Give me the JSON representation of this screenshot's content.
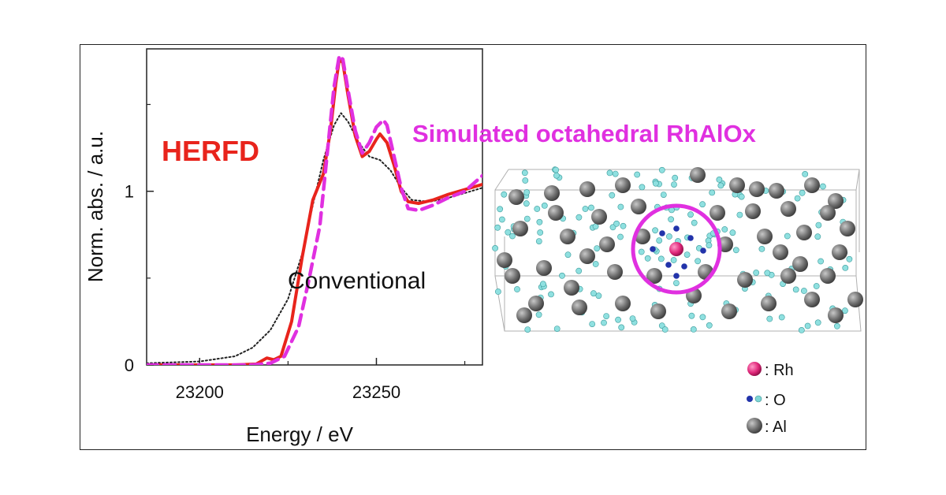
{
  "chart_data": {
    "type": "line",
    "xlabel": "Energy  / eV",
    "ylabel": "Norm. abs. / a.u.",
    "xlim": [
      23185,
      23280
    ],
    "ylim": [
      0,
      1.82
    ],
    "xticks": [
      23200,
      23250
    ],
    "yticks": [
      0,
      1
    ],
    "grid": false,
    "series": [
      {
        "name": "HERFD",
        "style": "solid",
        "color": "#e8241c",
        "points": [
          [
            23185,
            0
          ],
          [
            23210,
            0.0
          ],
          [
            23216,
            0.005
          ],
          [
            23219,
            0.04
          ],
          [
            23221,
            0.03
          ],
          [
            23223,
            0.05
          ],
          [
            23226,
            0.25
          ],
          [
            23229,
            0.62
          ],
          [
            23232,
            0.95
          ],
          [
            23235,
            1.1
          ],
          [
            23237,
            1.35
          ],
          [
            23238.5,
            1.62
          ],
          [
            23239.5,
            1.76
          ],
          [
            23240.5,
            1.74
          ],
          [
            23242,
            1.55
          ],
          [
            23244,
            1.32
          ],
          [
            23246,
            1.2
          ],
          [
            23248,
            1.23
          ],
          [
            23250,
            1.3
          ],
          [
            23251,
            1.33
          ],
          [
            23253,
            1.28
          ],
          [
            23255,
            1.15
          ],
          [
            23257,
            1.0
          ],
          [
            23259,
            0.94
          ],
          [
            23262,
            0.93
          ],
          [
            23266,
            0.95
          ],
          [
            23270,
            0.98
          ],
          [
            23275,
            1.01
          ],
          [
            23280,
            1.04
          ]
        ]
      },
      {
        "name": "Simulated octahedral RhAlOx",
        "style": "dashed",
        "color": "#e030e0",
        "points": [
          [
            23185,
            0
          ],
          [
            23215,
            0.0
          ],
          [
            23220,
            0.01
          ],
          [
            23224,
            0.05
          ],
          [
            23228,
            0.22
          ],
          [
            23231,
            0.5
          ],
          [
            23234,
            0.8
          ],
          [
            23236,
            1.2
          ],
          [
            23238,
            1.6
          ],
          [
            23239.5,
            1.78
          ],
          [
            23240.5,
            1.76
          ],
          [
            23242,
            1.58
          ],
          [
            23244,
            1.35
          ],
          [
            23246,
            1.22
          ],
          [
            23248,
            1.28
          ],
          [
            23250,
            1.37
          ],
          [
            23252,
            1.41
          ],
          [
            23253,
            1.38
          ],
          [
            23255,
            1.2
          ],
          [
            23257,
            1.02
          ],
          [
            23259,
            0.9
          ],
          [
            23262,
            0.89
          ],
          [
            23266,
            0.92
          ],
          [
            23270,
            0.96
          ],
          [
            23275,
            1.0
          ],
          [
            23280,
            1.09
          ]
        ]
      },
      {
        "name": "Conventional",
        "style": "dotted",
        "color": "#222222",
        "points": [
          [
            23185,
            0.01
          ],
          [
            23200,
            0.02
          ],
          [
            23210,
            0.05
          ],
          [
            23215,
            0.1
          ],
          [
            23220,
            0.2
          ],
          [
            23225,
            0.38
          ],
          [
            23229,
            0.64
          ],
          [
            23232,
            0.92
          ],
          [
            23235,
            1.18
          ],
          [
            23238,
            1.38
          ],
          [
            23240,
            1.45
          ],
          [
            23242,
            1.4
          ],
          [
            23245,
            1.28
          ],
          [
            23248,
            1.2
          ],
          [
            23251,
            1.18
          ],
          [
            23254,
            1.12
          ],
          [
            23257,
            1.02
          ],
          [
            23260,
            0.95
          ],
          [
            23265,
            0.94
          ],
          [
            23270,
            0.96
          ],
          [
            23275,
            0.99
          ],
          [
            23280,
            1.02
          ]
        ]
      }
    ],
    "annotations": [
      {
        "text": "HERFD",
        "color": "#e8241c"
      },
      {
        "text": "Conventional",
        "color": "#111111"
      },
      {
        "text": "Simulated octahedral RhAlOx",
        "color": "#e030e0"
      }
    ]
  },
  "structure": {
    "legend": [
      {
        "label": ": Rh",
        "color": "#e0287a"
      },
      {
        "label": ": O",
        "color": "#2233aa",
        "color2": "#7fd6d6"
      },
      {
        "label": ": Al",
        "color": "#777777"
      }
    ]
  }
}
